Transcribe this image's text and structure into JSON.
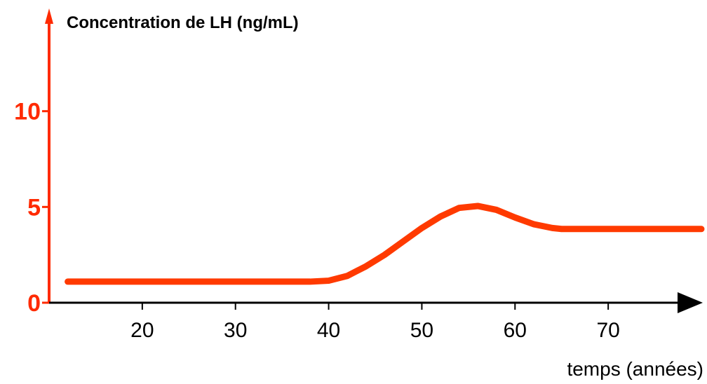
{
  "chart_data": {
    "type": "line",
    "title": "Concentration de LH (ng/mL)",
    "xlabel": "temps (années)",
    "ylabel": "",
    "x_ticks": [
      "20",
      "30",
      "40",
      "50",
      "60",
      "70"
    ],
    "y_ticks": [
      "0",
      "5",
      "10"
    ],
    "xlim": [
      10,
      80
    ],
    "ylim": [
      0,
      15
    ],
    "grid": false,
    "legend": "none",
    "colors": {
      "axis_y": "#ff2a00",
      "axis_x": "#000000",
      "series": "#ff3a00",
      "tick_y": "#ff2a00"
    },
    "series": [
      {
        "x": [
          12,
          20,
          30,
          38,
          40,
          42,
          44,
          46,
          48,
          50,
          52,
          54,
          56,
          58,
          60,
          62,
          64,
          65,
          70,
          75,
          80
        ],
        "y": [
          1.1,
          1.1,
          1.1,
          1.1,
          1.15,
          1.4,
          1.9,
          2.5,
          3.2,
          3.9,
          4.5,
          4.95,
          5.05,
          4.85,
          4.45,
          4.1,
          3.9,
          3.85,
          3.85,
          3.85,
          3.85
        ]
      }
    ]
  }
}
